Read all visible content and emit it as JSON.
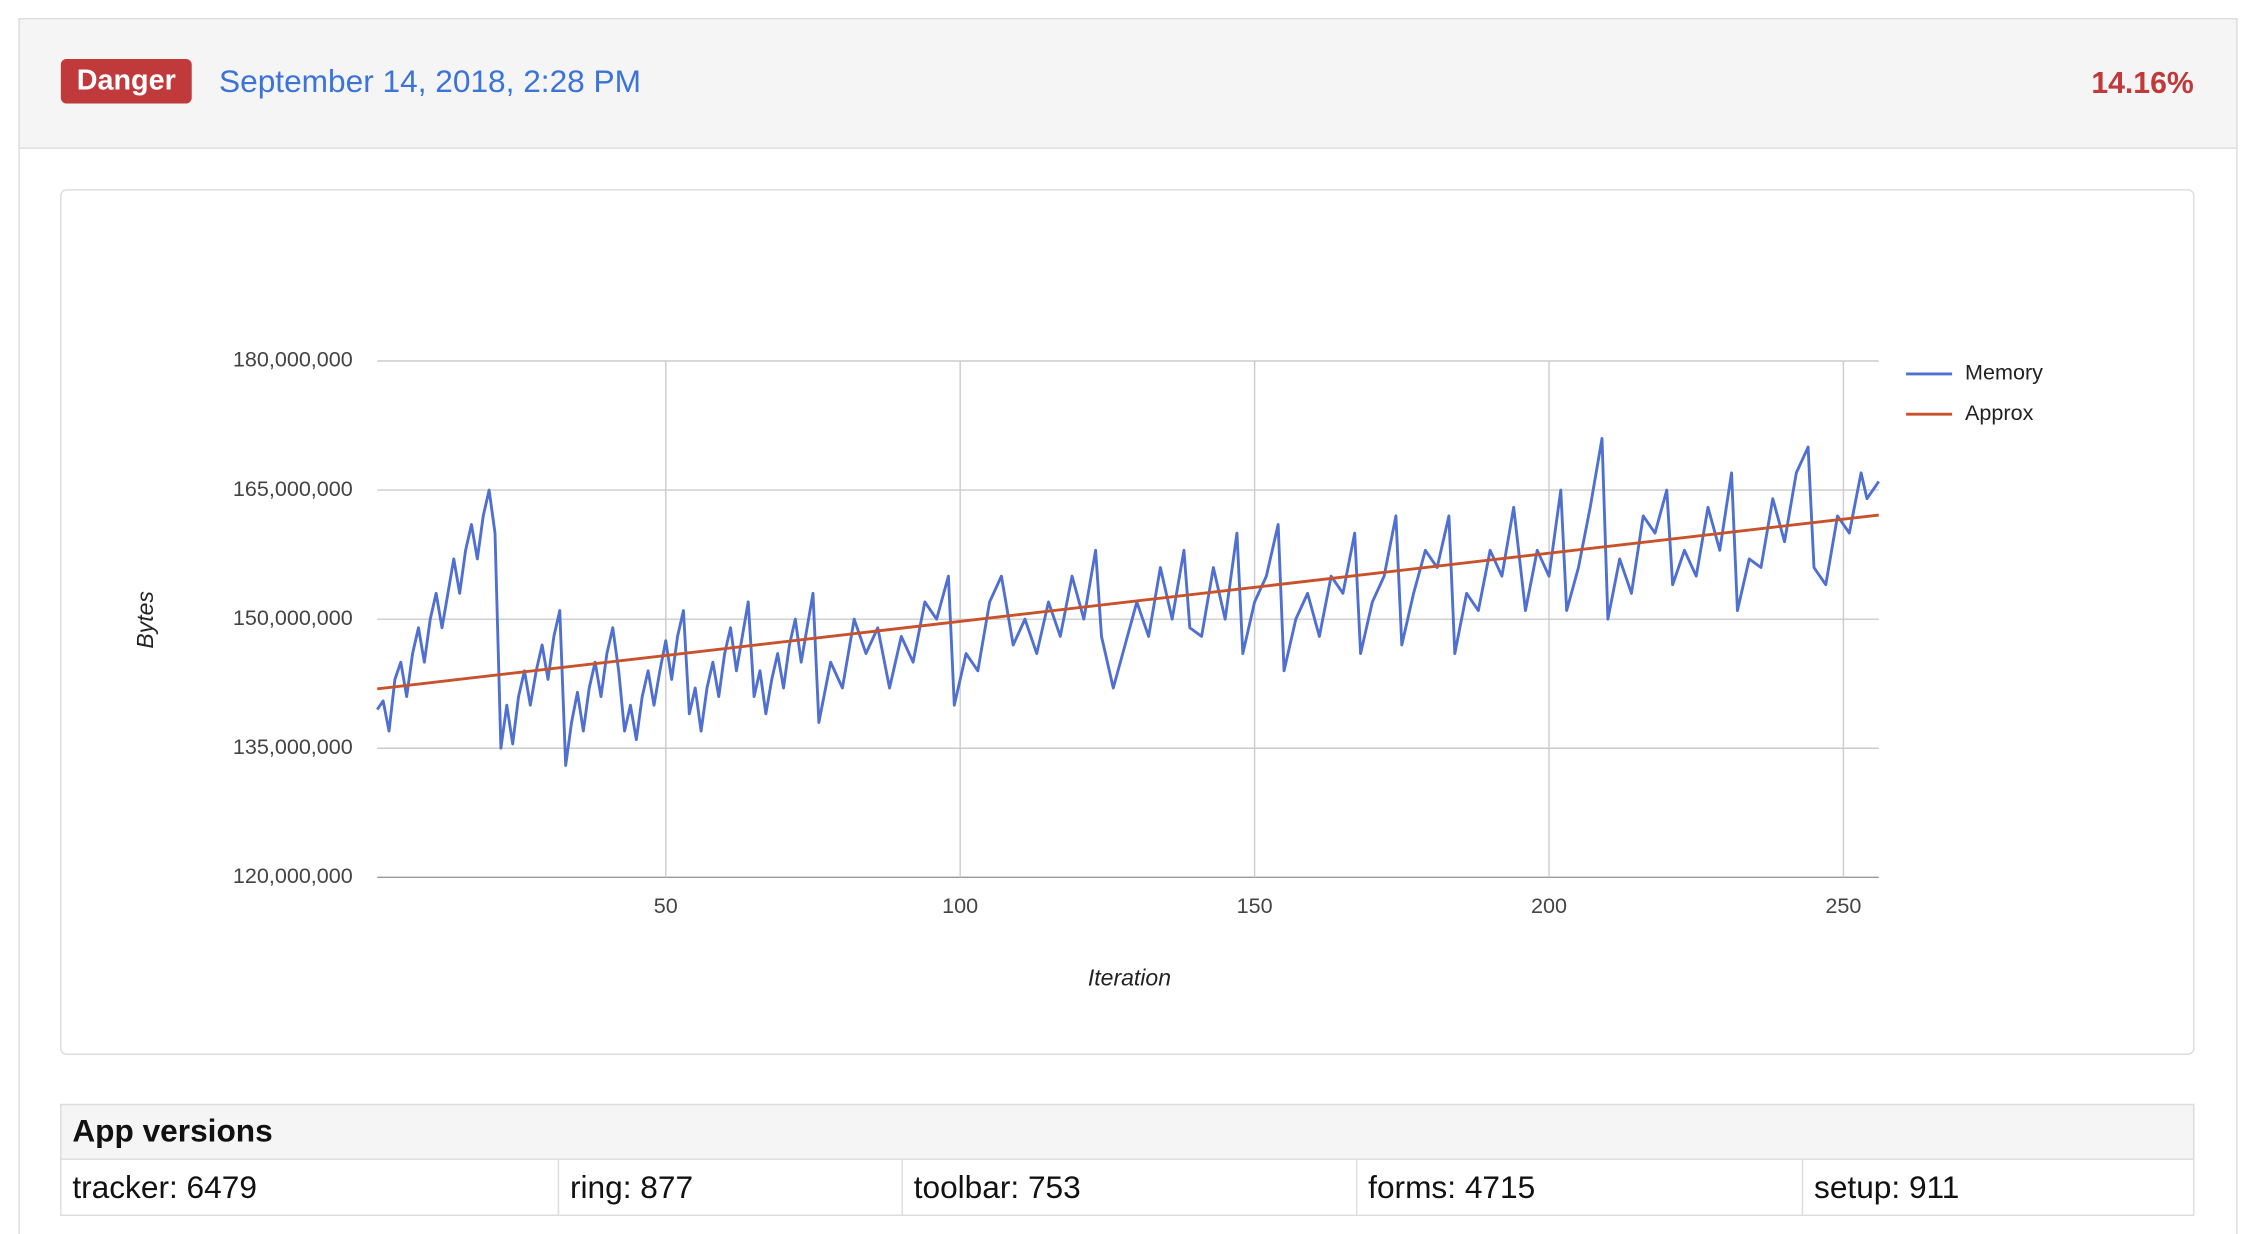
{
  "header": {
    "badge": "Danger",
    "date": "September 14, 2018, 2:28 PM",
    "percent": "14.16%"
  },
  "chart_data": {
    "type": "line",
    "x_label": "Iteration",
    "y_label": "Bytes",
    "xlim": [
      1,
      256
    ],
    "xticks": [
      50,
      100,
      150,
      200,
      250
    ],
    "ylim": [
      120000000,
      180000000
    ],
    "yticks": [
      {
        "value": 120000000,
        "label": "120,000,000"
      },
      {
        "value": 135000000,
        "label": "135,000,000"
      },
      {
        "value": 150000000,
        "label": "150,000,000"
      },
      {
        "value": 165000000,
        "label": "165,000,000"
      },
      {
        "value": 180000000,
        "label": "180,000,000"
      }
    ],
    "grid": true,
    "legend": "right",
    "series": [
      {
        "name": "Memory",
        "color": "#4f6fd1",
        "x": [
          1,
          2,
          3,
          4,
          5,
          6,
          7,
          8,
          9,
          10,
          11,
          12,
          13,
          14,
          15,
          16,
          17,
          18,
          19,
          20,
          21,
          22,
          23,
          24,
          25,
          26,
          27,
          28,
          29,
          30,
          31,
          32,
          33,
          34,
          35,
          36,
          37,
          38,
          39,
          40,
          41,
          42,
          43,
          44,
          45,
          46,
          47,
          48,
          49,
          50,
          51,
          52,
          53,
          54,
          55,
          56,
          57,
          58,
          59,
          60,
          61,
          62,
          63,
          64,
          65,
          66,
          67,
          68,
          69,
          70,
          71,
          72,
          73,
          74,
          75,
          76,
          78,
          80,
          82,
          84,
          86,
          88,
          90,
          92,
          94,
          96,
          98,
          99,
          101,
          103,
          105,
          107,
          109,
          111,
          113,
          115,
          117,
          119,
          121,
          123,
          124,
          126,
          128,
          130,
          132,
          134,
          136,
          138,
          139,
          141,
          143,
          145,
          147,
          148,
          150,
          152,
          154,
          155,
          157,
          159,
          161,
          163,
          165,
          167,
          168,
          170,
          172,
          174,
          175,
          177,
          179,
          181,
          183,
          184,
          186,
          188,
          190,
          192,
          194,
          196,
          198,
          200,
          202,
          203,
          205,
          207,
          209,
          210,
          212,
          214,
          216,
          218,
          220,
          221,
          223,
          225,
          227,
          229,
          231,
          232,
          234,
          236,
          238,
          240,
          242,
          244,
          245,
          247,
          249,
          251,
          253,
          254,
          256
        ],
        "values": [
          139500000,
          140500000,
          137000000,
          143000000,
          145000000,
          141000000,
          146000000,
          149000000,
          145000000,
          150000000,
          153000000,
          149000000,
          153000000,
          157000000,
          153000000,
          158000000,
          161000000,
          157000000,
          162000000,
          165000000,
          160000000,
          135000000,
          140000000,
          135500000,
          141000000,
          144000000,
          140000000,
          144000000,
          147000000,
          143000000,
          148000000,
          151000000,
          133000000,
          138000000,
          141500000,
          137000000,
          142000000,
          145000000,
          141000000,
          146000000,
          149000000,
          144000000,
          137000000,
          140000000,
          136000000,
          141000000,
          144000000,
          140000000,
          144000000,
          147500000,
          143000000,
          148000000,
          151000000,
          139000000,
          142000000,
          137000000,
          142000000,
          145000000,
          141000000,
          146000000,
          149000000,
          144000000,
          148000000,
          152000000,
          141000000,
          144000000,
          139000000,
          143000000,
          146000000,
          142000000,
          147000000,
          150000000,
          145000000,
          149000000,
          153000000,
          138000000,
          145000000,
          142000000,
          150000000,
          146000000,
          149000000,
          142000000,
          148000000,
          145000000,
          152000000,
          150000000,
          155000000,
          140000000,
          146000000,
          144000000,
          152000000,
          155000000,
          147000000,
          150000000,
          146000000,
          152000000,
          148000000,
          155000000,
          150000000,
          158000000,
          148000000,
          142000000,
          147000000,
          152000000,
          148000000,
          156000000,
          150000000,
          158000000,
          149000000,
          148000000,
          156000000,
          150000000,
          160000000,
          146000000,
          152000000,
          155000000,
          161000000,
          144000000,
          150000000,
          153000000,
          148000000,
          155000000,
          153000000,
          160000000,
          146000000,
          152000000,
          155000000,
          162000000,
          147000000,
          153000000,
          158000000,
          156000000,
          162000000,
          146000000,
          153000000,
          151000000,
          158000000,
          155000000,
          163000000,
          151000000,
          158000000,
          155000000,
          165000000,
          151000000,
          156000000,
          163000000,
          171000000,
          150000000,
          157000000,
          153000000,
          162000000,
          160000000,
          165000000,
          154000000,
          158000000,
          155000000,
          163000000,
          158000000,
          167000000,
          151000000,
          157000000,
          156000000,
          164000000,
          159000000,
          167000000,
          170000000,
          156000000,
          154000000,
          162000000,
          160000000,
          167000000,
          164000000,
          166000000
        ]
      },
      {
        "name": "Approx",
        "color": "#c8522b",
        "x": [
          1,
          256
        ],
        "values": [
          141900000,
          162100000
        ]
      }
    ]
  },
  "table": {
    "title": "App versions",
    "rows": [
      [
        "tracker: 6479",
        "ring: 877",
        "toolbar: 753",
        "forms: 4715",
        "setup: 911"
      ]
    ]
  }
}
